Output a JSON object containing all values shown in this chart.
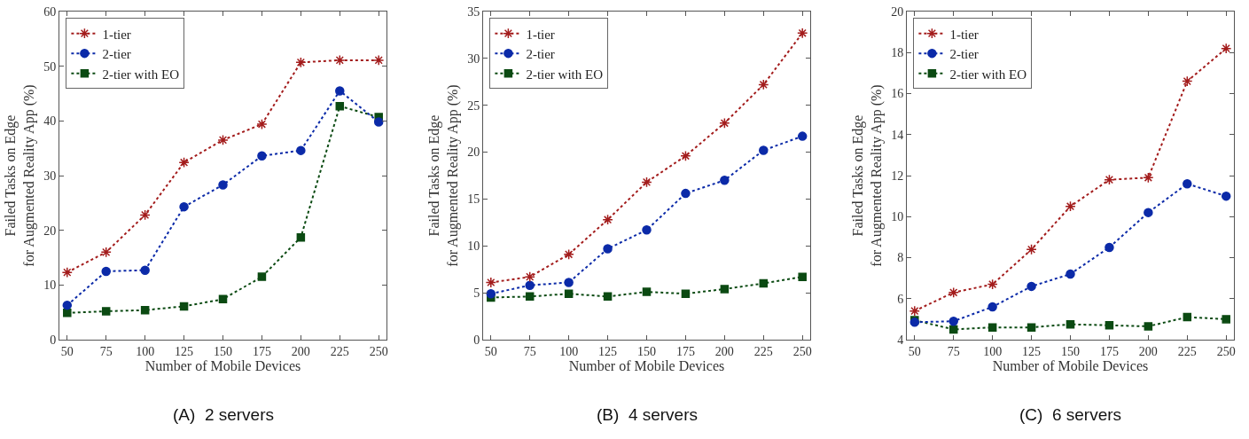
{
  "chart_data": [
    {
      "type": "line",
      "xlabel": "Number of Mobile Devices",
      "ylabel": "Failed Tasks on Edge\nfor Augmented Reality App (%)",
      "annotations": [
        "(A)  2 servers"
      ],
      "x": [
        50,
        75,
        100,
        125,
        150,
        175,
        200,
        225,
        250
      ],
      "xlim": [
        45,
        255
      ],
      "xticks": [
        50,
        75,
        100,
        125,
        150,
        175,
        200,
        225,
        250
      ],
      "ylim": [
        0,
        60
      ],
      "yticks": [
        0,
        10,
        20,
        30,
        40,
        50,
        60
      ],
      "legend": "top left",
      "line_style": "dotted",
      "series": [
        {
          "name": "1-tier",
          "color": "#a31c1c",
          "marker": "cross",
          "values": [
            12.3,
            16.0,
            22.8,
            32.4,
            36.5,
            39.4,
            50.7,
            51.1,
            51.1
          ]
        },
        {
          "name": "2-tier",
          "color": "#0b2aa8",
          "marker": "circle",
          "values": [
            6.3,
            12.5,
            12.7,
            24.3,
            28.3,
            33.6,
            34.6,
            45.5,
            39.8
          ]
        },
        {
          "name": "2-tier with EO",
          "color": "#0b4a12",
          "marker": "square",
          "values": [
            4.9,
            5.2,
            5.4,
            6.1,
            7.4,
            11.5,
            18.7,
            42.7,
            40.7
          ]
        }
      ]
    },
    {
      "type": "line",
      "xlabel": "Number of Mobile Devices",
      "ylabel": "Failed Tasks on Edge\nfor Augmented Reality App (%)",
      "annotations": [
        "(B)  4 servers"
      ],
      "x": [
        50,
        75,
        100,
        125,
        150,
        175,
        200,
        225,
        250
      ],
      "xlim": [
        45,
        255
      ],
      "xticks": [
        50,
        75,
        100,
        125,
        150,
        175,
        200,
        225,
        250
      ],
      "ylim": [
        0,
        35
      ],
      "yticks": [
        0,
        5,
        10,
        15,
        20,
        25,
        30,
        35
      ],
      "legend": "top left",
      "line_style": "dotted",
      "series": [
        {
          "name": "1-tier",
          "color": "#a31c1c",
          "marker": "cross",
          "values": [
            6.1,
            6.7,
            9.1,
            12.8,
            16.8,
            19.6,
            23.1,
            27.2,
            32.7
          ]
        },
        {
          "name": "2-tier",
          "color": "#0b2aa8",
          "marker": "circle",
          "values": [
            4.9,
            5.8,
            6.1,
            9.7,
            11.7,
            15.6,
            17.0,
            20.2,
            21.7
          ]
        },
        {
          "name": "2-tier with EO",
          "color": "#0b4a12",
          "marker": "square",
          "values": [
            4.5,
            4.6,
            4.9,
            4.6,
            5.1,
            4.9,
            5.4,
            6.0,
            6.7
          ]
        }
      ]
    },
    {
      "type": "line",
      "xlabel": "Number of Mobile Devices",
      "ylabel": "Failed Tasks on Edge\nfor Augmented Reality App (%)",
      "annotations": [
        "(C)  6 servers"
      ],
      "x": [
        50,
        75,
        100,
        125,
        150,
        175,
        200,
        225,
        250
      ],
      "xlim": [
        45,
        255
      ],
      "xticks": [
        50,
        75,
        100,
        125,
        150,
        175,
        200,
        225,
        250
      ],
      "ylim": [
        4,
        20
      ],
      "yticks": [
        4,
        6,
        8,
        10,
        12,
        14,
        16,
        18,
        20
      ],
      "legend": "top left",
      "line_style": "dotted",
      "series": [
        {
          "name": "1-tier",
          "color": "#a31c1c",
          "marker": "cross",
          "values": [
            5.4,
            6.3,
            6.7,
            8.4,
            10.5,
            11.8,
            11.9,
            16.6,
            18.2
          ]
        },
        {
          "name": "2-tier",
          "color": "#0b2aa8",
          "marker": "circle",
          "values": [
            4.85,
            4.9,
            5.6,
            6.6,
            7.2,
            8.5,
            10.2,
            11.6,
            11.0
          ]
        },
        {
          "name": "2-tier with EO",
          "color": "#0b4a12",
          "marker": "square",
          "values": [
            4.95,
            4.5,
            4.6,
            4.6,
            4.75,
            4.7,
            4.65,
            5.1,
            5.0
          ]
        }
      ]
    }
  ]
}
